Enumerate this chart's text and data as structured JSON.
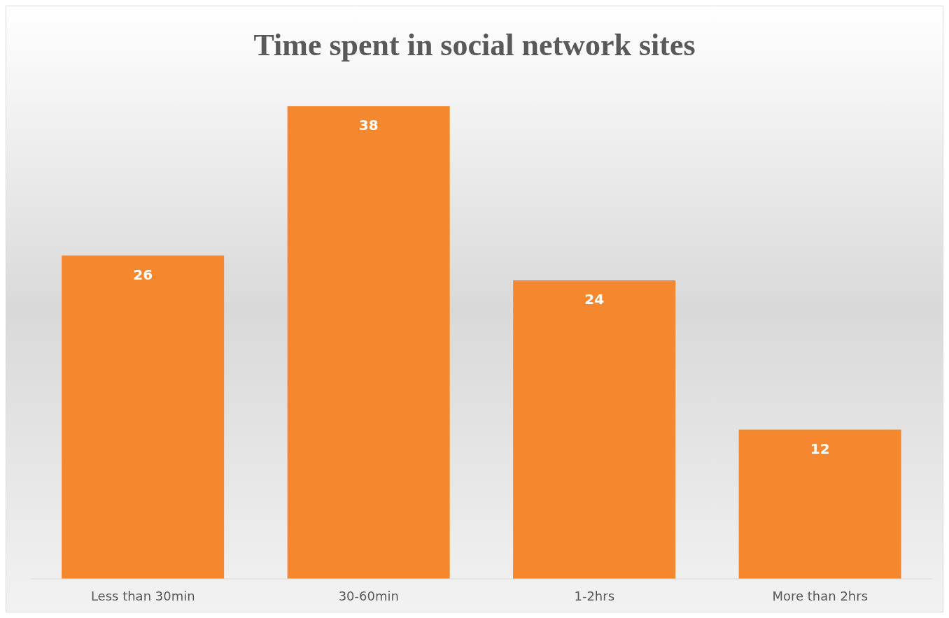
{
  "chart_data": {
    "type": "bar",
    "title": "Time spent in social network sites",
    "categories": [
      "Less than 30min",
      "30-60min",
      "1-2hrs",
      "More than 2hrs"
    ],
    "values": [
      26,
      38,
      24,
      12
    ],
    "color": "#f5872e",
    "data_labels": true,
    "tick_labels": "x"
  }
}
